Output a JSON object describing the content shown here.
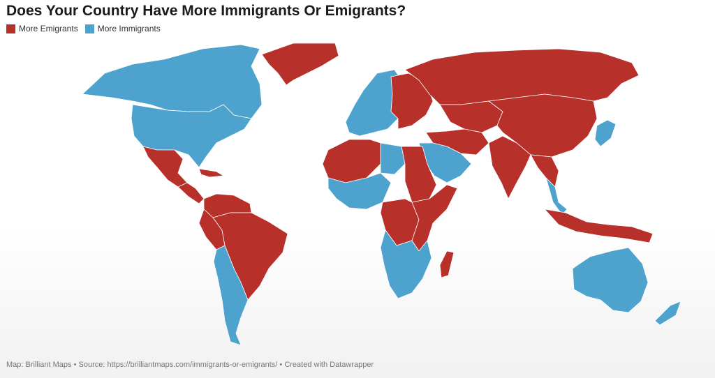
{
  "title": "Does Your Country Have More Immigrants Or Emigrants?",
  "legend": {
    "emigrants": {
      "label": "More Emigrants",
      "color": "#b7302a"
    },
    "immigrants": {
      "label": "More Immigrants",
      "color": "#4ea3ce"
    }
  },
  "footer": "Map: Brilliant Maps • Source: https://brilliantmaps.com/immigrants-or-emigrants/ • Created with Datawrapper",
  "regions": {
    "canada": "immigrants",
    "usa": "immigrants",
    "greenland": "emigrants",
    "mexico": "emigrants",
    "central_america": "emigrants",
    "cuba_caribbean": "emigrants",
    "colombia_venezuela": "emigrants",
    "brazil": "emigrants",
    "peru": "emigrants",
    "ecuador_chile_argentina": "immigrants",
    "western_europe": "immigrants",
    "eastern_europe": "emigrants",
    "russia": "emigrants",
    "kazakhstan_central_asia": "emigrants",
    "china": "emigrants",
    "india": "emigrants",
    "southeast_asia": "emigrants",
    "thailand_malaysia": "immigrants",
    "japan_korea": "immigrants",
    "arabian_peninsula": "immigrants",
    "iran_iraq": "emigrants",
    "north_africa": "emigrants",
    "libya": "immigrants",
    "egypt_sudan": "emigrants",
    "west_africa_mixed": "immigrants",
    "central_africa": "emigrants",
    "east_africa": "emigrants",
    "southern_africa": "immigrants",
    "madagascar": "emigrants",
    "indonesia_png": "emigrants",
    "australia": "immigrants",
    "new_zealand": "immigrants"
  }
}
